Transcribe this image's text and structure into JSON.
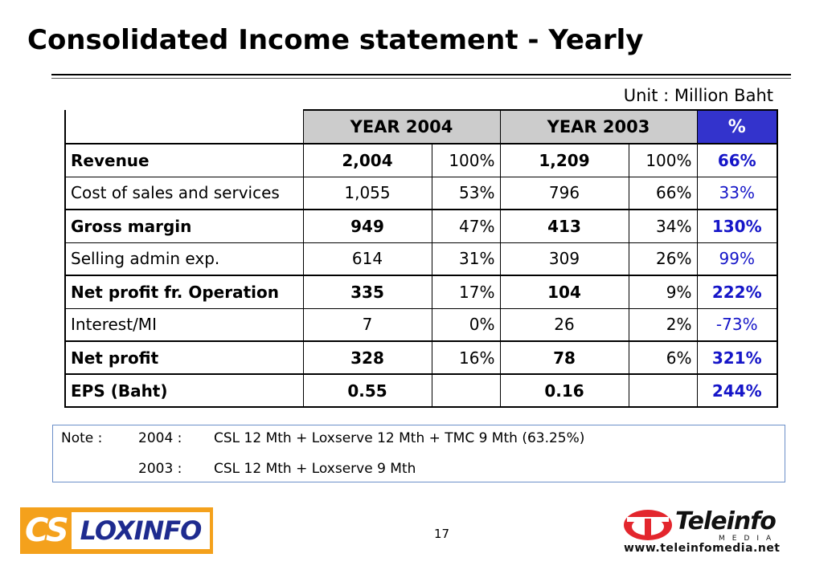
{
  "title": "Consolidated Income statement - Yearly",
  "unit": "Unit : Million Baht",
  "table": {
    "headers": {
      "year_a": "YEAR 2004",
      "year_b": "YEAR 2003",
      "change": "%"
    },
    "rows": [
      {
        "label": "Revenue",
        "a_value": "2,004",
        "a_pct": "100%",
        "b_value": "1,209",
        "b_pct": "100%",
        "change": "66%"
      },
      {
        "label": "Cost of sales and services",
        "a_value": "1,055",
        "a_pct": "53%",
        "b_value": "796",
        "b_pct": "66%",
        "change": "33%"
      },
      {
        "label": "Gross margin",
        "a_value": "949",
        "a_pct": "47%",
        "b_value": "413",
        "b_pct": "34%",
        "change": "130%"
      },
      {
        "label": "Selling admin exp.",
        "a_value": "614",
        "a_pct": "31%",
        "b_value": "309",
        "b_pct": "26%",
        "change": "99%"
      },
      {
        "label": "Net profit fr. Operation",
        "a_value": "335",
        "a_pct": "17%",
        "b_value": "104",
        "b_pct": "9%",
        "change": "222%"
      },
      {
        "label": "Interest/MI",
        "a_value": "7",
        "a_pct": "0%",
        "b_value": "26",
        "b_pct": "2%",
        "change": "-73%"
      },
      {
        "label": "Net profit",
        "a_value": "328",
        "a_pct": "16%",
        "b_value": "78",
        "b_pct": "6%",
        "change": "321%"
      },
      {
        "label": "EPS (Baht)",
        "a_value": "0.55",
        "a_pct": "",
        "b_value": "0.16",
        "b_pct": "",
        "change": "244%"
      }
    ]
  },
  "note": {
    "key": "Note :",
    "lines": [
      {
        "year": "2004 :",
        "text": "CSL 12 Mth + Loxserve 12 Mth + TMC 9 Mth (63.25%)"
      },
      {
        "year": "2003 :",
        "text": "CSL 12 Mth + Loxserve 9 Mth"
      }
    ]
  },
  "page_number": "17",
  "logos": {
    "left": {
      "part1": "CS",
      "part2": "LOXINFO"
    },
    "right": {
      "name": "Teleinfo",
      "sub": "MEDIA",
      "url": "www.teleinfomedia.net"
    }
  },
  "colors": {
    "header_gray": "#cccccc",
    "header_blue": "#3333cc",
    "change_text": "#1515c8",
    "logo_orange": "#f4a11c",
    "logo_navy": "#1e2b8f",
    "logo_red": "#e3262d"
  }
}
